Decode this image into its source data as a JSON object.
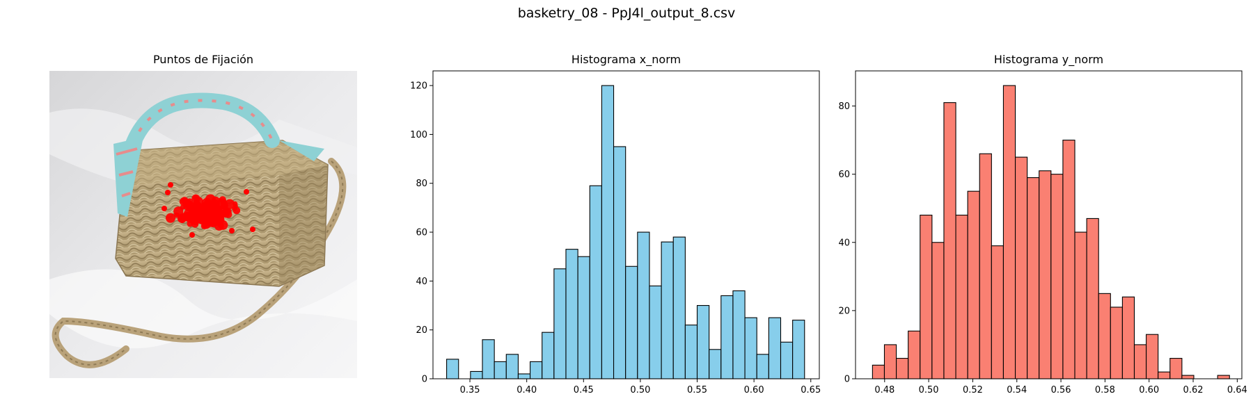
{
  "suptitle": "basketry_08 - PpJ4l_output_8.csv",
  "panels": {
    "image_title": "Puntos de Fijación",
    "hist_x_title": "Histograma x_norm",
    "hist_y_title": "Histograma y_norm"
  },
  "colors": {
    "fixation": "#ff0000",
    "hist_x_fill": "#87ceeb",
    "hist_y_fill": "#fa8072",
    "bar_edge": "#000000"
  },
  "chart_data": [
    {
      "type": "bar",
      "title": "Histograma x_norm",
      "xlabel": "",
      "ylabel": "",
      "xlim": [
        0.3175,
        0.6575
      ],
      "ylim": [
        0,
        126
      ],
      "xticks": [
        0.35,
        0.4,
        0.45,
        0.5,
        0.55,
        0.6,
        0.65
      ],
      "xtick_labels": [
        "0.35",
        "0.40",
        "0.45",
        "0.50",
        "0.55",
        "0.60",
        "0.65"
      ],
      "yticks": [
        0,
        20,
        40,
        60,
        80,
        100,
        120
      ],
      "bin_start": 0.3295,
      "bin_width": 0.0105,
      "values": [
        8,
        0,
        3,
        16,
        7,
        10,
        2,
        7,
        19,
        45,
        53,
        50,
        79,
        120,
        95,
        46,
        60,
        38,
        56,
        58,
        22,
        30,
        12,
        34,
        36,
        25,
        10,
        25,
        15,
        24
      ],
      "grid": false
    },
    {
      "type": "bar",
      "title": "Histograma y_norm",
      "xlabel": "",
      "ylabel": "",
      "xlim": [
        0.4668,
        0.6421
      ],
      "ylim": [
        0,
        90.3
      ],
      "xticks": [
        0.48,
        0.5,
        0.52,
        0.54,
        0.56,
        0.58,
        0.6,
        0.62,
        0.64
      ],
      "xtick_labels": [
        "0.48",
        "0.50",
        "0.52",
        "0.54",
        "0.56",
        "0.58",
        "0.60",
        "0.62",
        "0.64"
      ],
      "yticks": [
        0,
        20,
        40,
        60,
        80
      ],
      "bin_start": 0.4745,
      "bin_width": 0.0054,
      "values": [
        4,
        10,
        6,
        14,
        48,
        40,
        81,
        48,
        55,
        66,
        39,
        86,
        65,
        59,
        61,
        60,
        70,
        43,
        47,
        25,
        21,
        24,
        10,
        13,
        2,
        6,
        1,
        0,
        0,
        1
      ],
      "grid": false
    }
  ]
}
